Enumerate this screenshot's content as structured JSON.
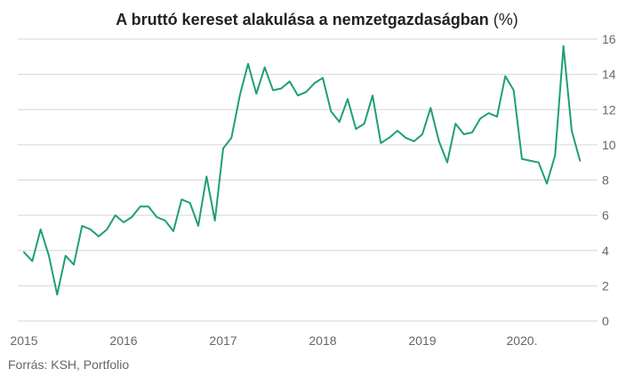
{
  "title": "A bruttó kereset alakulása a nemzetgazdaságban",
  "title_unit": "(%)",
  "source": "Forrás: KSH, Portfolio",
  "colors": {
    "line": "#1f9e7a",
    "grid": "#d6d6d6",
    "text": "#666666"
  },
  "chart_data": {
    "type": "line",
    "title": "A bruttó kereset alakulása a nemzetgazdaságban (%)",
    "xlabel": "",
    "ylabel": "",
    "ylim": [
      0,
      16
    ],
    "xlim": [
      2015,
      2020.67
    ],
    "grid": true,
    "y_axis_side": "right",
    "yticks": [
      0,
      2,
      4,
      6,
      8,
      10,
      12,
      14,
      16
    ],
    "xticks": [
      {
        "value": 2015,
        "label": "2015"
      },
      {
        "value": 2016,
        "label": "2016"
      },
      {
        "value": 2017,
        "label": "2017"
      },
      {
        "value": 2018,
        "label": "2018"
      },
      {
        "value": 2019,
        "label": "2019"
      },
      {
        "value": 2020,
        "label": "2020."
      }
    ],
    "series": [
      {
        "x": [
          2015.0,
          2015.083,
          2015.167,
          2015.25,
          2015.333,
          2015.417,
          2015.5,
          2015.583,
          2015.667,
          2015.75,
          2015.833,
          2015.917,
          2016.0,
          2016.083,
          2016.167,
          2016.25,
          2016.333,
          2016.417,
          2016.5,
          2016.583,
          2016.667,
          2016.75,
          2016.833,
          2016.917,
          2017.0,
          2017.083,
          2017.167,
          2017.25,
          2017.333,
          2017.417,
          2017.5,
          2017.583,
          2017.667,
          2017.75,
          2017.833,
          2017.917,
          2018.0,
          2018.083,
          2018.167,
          2018.25,
          2018.333,
          2018.417,
          2018.5,
          2018.583,
          2018.667,
          2018.75,
          2018.833,
          2018.917,
          2019.0,
          2019.083,
          2019.167,
          2019.25,
          2019.333,
          2019.417,
          2019.5,
          2019.583,
          2019.667,
          2019.75,
          2019.833,
          2019.917,
          2020.0,
          2020.083,
          2020.167,
          2020.25,
          2020.333,
          2020.417,
          2020.5,
          2020.583
        ],
        "values": [
          3.9,
          3.4,
          5.2,
          3.7,
          1.5,
          3.7,
          3.2,
          5.4,
          5.2,
          4.8,
          5.2,
          6.0,
          5.6,
          5.9,
          6.5,
          6.5,
          5.9,
          5.7,
          5.1,
          6.9,
          6.7,
          5.4,
          8.2,
          5.7,
          9.8,
          10.4,
          12.8,
          14.6,
          12.9,
          14.4,
          13.1,
          13.2,
          13.6,
          12.8,
          13.0,
          13.5,
          13.8,
          11.9,
          11.3,
          12.6,
          10.9,
          11.2,
          12.8,
          10.1,
          10.4,
          10.8,
          10.4,
          10.2,
          10.6,
          12.1,
          10.2,
          9.0,
          11.2,
          10.6,
          10.7,
          11.5,
          11.8,
          11.6,
          13.9,
          13.1,
          9.2,
          9.1,
          9.0,
          7.8,
          9.4,
          15.6,
          10.8,
          9.1
        ]
      }
    ]
  }
}
